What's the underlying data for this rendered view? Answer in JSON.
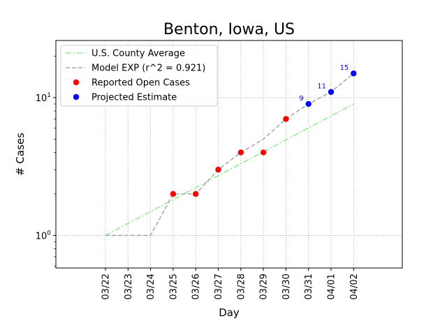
{
  "chart_data": {
    "type": "line",
    "title": "Benton, Iowa, US",
    "xlabel": "Day",
    "ylabel": "# Cases",
    "yscale": "log",
    "ylim": [
      0.58,
      26
    ],
    "grid": true,
    "legend_position": "top-left",
    "categories": [
      "03/22",
      "03/23",
      "03/24",
      "03/25",
      "03/26",
      "03/27",
      "03/28",
      "03/29",
      "03/30",
      "03/31",
      "04/01",
      "04/02"
    ],
    "y_ticks": [
      {
        "value": 1,
        "base": "10",
        "exp": "0"
      },
      {
        "value": 10,
        "base": "10",
        "exp": "1"
      }
    ],
    "series": [
      {
        "name": "U.S. County Average",
        "style": "dashdot",
        "color": "#90ee90",
        "points": [
          [
            "03/22",
            1.0
          ],
          [
            "04/02",
            9.0
          ]
        ]
      },
      {
        "name": "Model EXP (r^2 = 0.921)",
        "style": "dashed",
        "color": "#a9a9a9",
        "points": [
          [
            "03/22",
            1
          ],
          [
            "03/23",
            1
          ],
          [
            "03/24",
            1
          ],
          [
            "03/25",
            2
          ],
          [
            "03/26",
            2
          ],
          [
            "03/27",
            3
          ],
          [
            "03/28",
            4
          ],
          [
            "03/29",
            5
          ],
          [
            "03/30",
            7
          ],
          [
            "03/31",
            9
          ],
          [
            "04/01",
            11
          ],
          [
            "04/02",
            15
          ]
        ]
      },
      {
        "name": "Reported Open Cases",
        "style": "marker",
        "color": "#ff0000",
        "points": [
          [
            "03/25",
            2
          ],
          [
            "03/26",
            2
          ],
          [
            "03/27",
            3
          ],
          [
            "03/28",
            4
          ],
          [
            "03/29",
            4
          ],
          [
            "03/30",
            7
          ]
        ]
      },
      {
        "name": "Projected Estimate",
        "style": "marker",
        "color": "#0000ff",
        "points": [
          [
            "03/31",
            9
          ],
          [
            "04/01",
            11
          ],
          [
            "04/02",
            15
          ]
        ],
        "labels": [
          "9",
          "11",
          "15"
        ]
      }
    ]
  }
}
